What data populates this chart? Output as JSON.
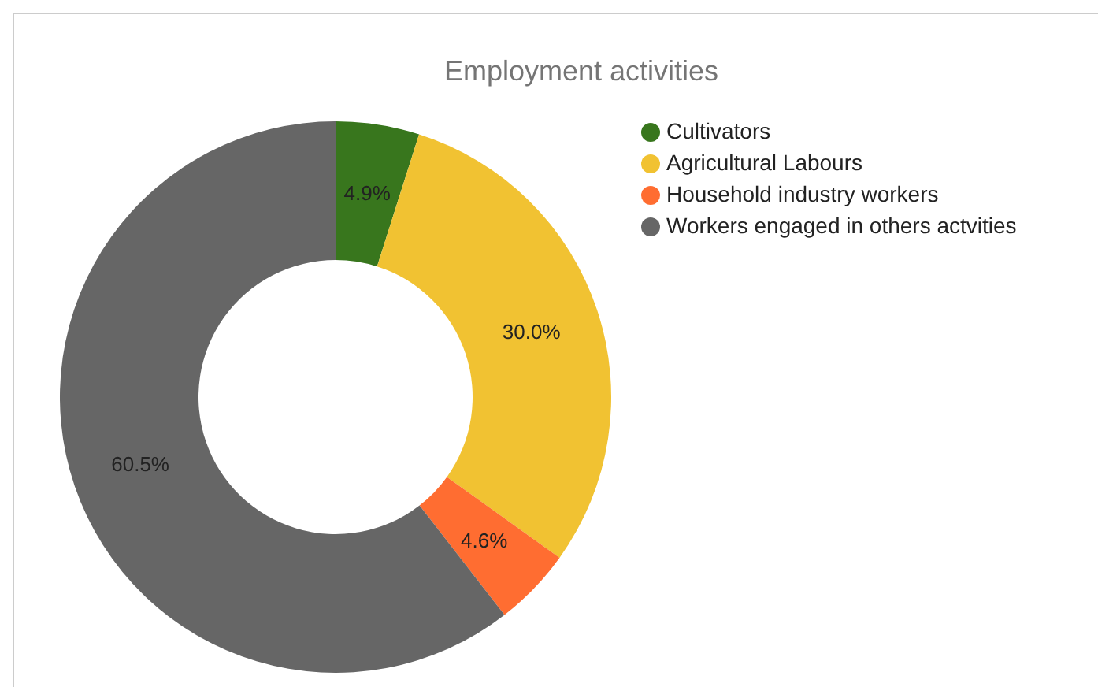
{
  "chart_data": {
    "type": "donut",
    "title": "Employment activities",
    "categories": [
      "Cultivators",
      "Agricultural Labours",
      "Household industry workers",
      "Workers engaged in others actvities"
    ],
    "values": [
      4.9,
      30.0,
      4.6,
      60.5
    ],
    "colors": [
      "#38761d",
      "#f1c232",
      "#ff6d31",
      "#666666"
    ],
    "value_labels": [
      "4.9%",
      "30.0%",
      "4.6%",
      "60.5%"
    ],
    "legend": "right"
  }
}
